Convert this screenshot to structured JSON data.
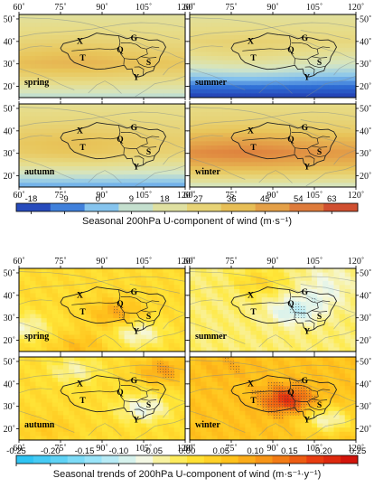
{
  "chart_data": [
    {
      "type": "heatmap",
      "title": "",
      "colorbar_label": "Seasonal 200hPa U-component of wind (m·s⁻¹)",
      "colorbar_ticks": [
        "-18",
        "-9",
        "0",
        "9",
        "18",
        "27",
        "36",
        "45",
        "54",
        "63"
      ],
      "value_range": [
        -22,
        70
      ],
      "x_ticks": [
        "60˚",
        "75˚",
        "90˚",
        "105˚",
        "120˚"
      ],
      "y_ticks": [
        "20˚",
        "30˚",
        "40˚",
        "50˚"
      ],
      "xlim": [
        60,
        120
      ],
      "ylim": [
        15,
        52
      ],
      "panels": [
        {
          "name": "spring",
          "zonal_profile": [
            {
              "lat": 15,
              "value": 8
            },
            {
              "lat": 20,
              "value": 20
            },
            {
              "lat": 25,
              "value": 30
            },
            {
              "lat": 30,
              "value": 38
            },
            {
              "lat": 35,
              "value": 33
            },
            {
              "lat": 40,
              "value": 28
            },
            {
              "lat": 45,
              "value": 24
            },
            {
              "lat": 52,
              "value": 20
            }
          ]
        },
        {
          "name": "summer",
          "zonal_profile": [
            {
              "lat": 15,
              "value": -20
            },
            {
              "lat": 20,
              "value": -10
            },
            {
              "lat": 25,
              "value": 4
            },
            {
              "lat": 30,
              "value": 16
            },
            {
              "lat": 35,
              "value": 24
            },
            {
              "lat": 40,
              "value": 28
            },
            {
              "lat": 45,
              "value": 24
            },
            {
              "lat": 52,
              "value": 20
            }
          ]
        },
        {
          "name": "autumn",
          "zonal_profile": [
            {
              "lat": 15,
              "value": -4
            },
            {
              "lat": 20,
              "value": 10
            },
            {
              "lat": 25,
              "value": 22
            },
            {
              "lat": 30,
              "value": 32
            },
            {
              "lat": 35,
              "value": 34
            },
            {
              "lat": 40,
              "value": 30
            },
            {
              "lat": 45,
              "value": 26
            },
            {
              "lat": 52,
              "value": 22
            }
          ]
        },
        {
          "name": "winter",
          "zonal_profile": [
            {
              "lat": 15,
              "value": 12
            },
            {
              "lat": 20,
              "value": 28
            },
            {
              "lat": 25,
              "value": 42
            },
            {
              "lat": 30,
              "value": 52
            },
            {
              "lat": 35,
              "value": 44
            },
            {
              "lat": 40,
              "value": 34
            },
            {
              "lat": 45,
              "value": 28
            },
            {
              "lat": 52,
              "value": 24
            }
          ]
        }
      ]
    },
    {
      "type": "heatmap",
      "title": "",
      "colorbar_label": "Seasonal trends of 200hPa U-component of wind (m·s⁻¹·y⁻¹)",
      "colorbar_ticks": [
        "-0.25",
        "-0.20",
        "-0.15",
        "-0.10",
        "-0.05",
        "0.00",
        "0.05",
        "0.10",
        "0.15",
        "0.20",
        "0.25"
      ],
      "value_range": [
        -0.25,
        0.25
      ],
      "x_ticks": [
        "60˚",
        "75˚",
        "90˚",
        "105˚",
        "120˚"
      ],
      "y_ticks": [
        "20˚",
        "30˚",
        "40˚",
        "50˚"
      ],
      "xlim": [
        60,
        120
      ],
      "ylim": [
        15,
        52
      ],
      "panels": [
        {
          "name": "spring",
          "background": 0.02,
          "anomalies": [
            {
              "lon": 95,
              "lat": 32,
              "value": 0.09
            },
            {
              "lon": 62,
              "lat": 26,
              "value": -0.05
            },
            {
              "lon": 103,
              "lat": 23,
              "value": -0.06
            },
            {
              "lon": 82,
              "lat": 17,
              "value": 0.07
            }
          ]
        },
        {
          "name": "summer",
          "background": -0.02,
          "anomalies": [
            {
              "lon": 98,
              "lat": 33,
              "value": -0.1
            },
            {
              "lon": 108,
              "lat": 40,
              "value": -0.06
            },
            {
              "lon": 110,
              "lat": 48,
              "value": -0.05
            },
            {
              "lon": 85,
              "lat": 46,
              "value": 0.03
            }
          ]
        },
        {
          "name": "autumn",
          "background": 0.02,
          "anomalies": [
            {
              "lon": 105,
              "lat": 29,
              "value": -0.07
            },
            {
              "lon": 112,
              "lat": 46,
              "value": 0.1
            },
            {
              "lon": 80,
              "lat": 46,
              "value": -0.04
            },
            {
              "lon": 70,
              "lat": 20,
              "value": 0.05
            }
          ]
        },
        {
          "name": "winter",
          "background": 0.06,
          "anomalies": [
            {
              "lon": 95,
              "lat": 33,
              "value": 0.2
            },
            {
              "lon": 110,
              "lat": 24,
              "value": -0.05
            },
            {
              "lon": 75,
              "lat": 48,
              "value": 0.08
            },
            {
              "lon": 68,
              "lat": 20,
              "value": 0.06
            }
          ]
        }
      ]
    }
  ],
  "regions": [
    "X",
    "G",
    "T",
    "Q",
    "S",
    "Y"
  ],
  "colors": {
    "scale1": [
      "#2233aa",
      "#2f6fd6",
      "#86c4ee",
      "#d4e6c6",
      "#e7dc88",
      "#e8c55a",
      "#e4a048",
      "#dc7238",
      "#c8372a"
    ],
    "scale2": [
      "#23c0f2",
      "#5ed2f5",
      "#a8e8fa",
      "#f4f8e4",
      "#ffe83a",
      "#ffc21c",
      "#f58a16",
      "#e83d10",
      "#cc0a0a"
    ],
    "coast": "#7d8a8f",
    "boundary": "#222222"
  }
}
